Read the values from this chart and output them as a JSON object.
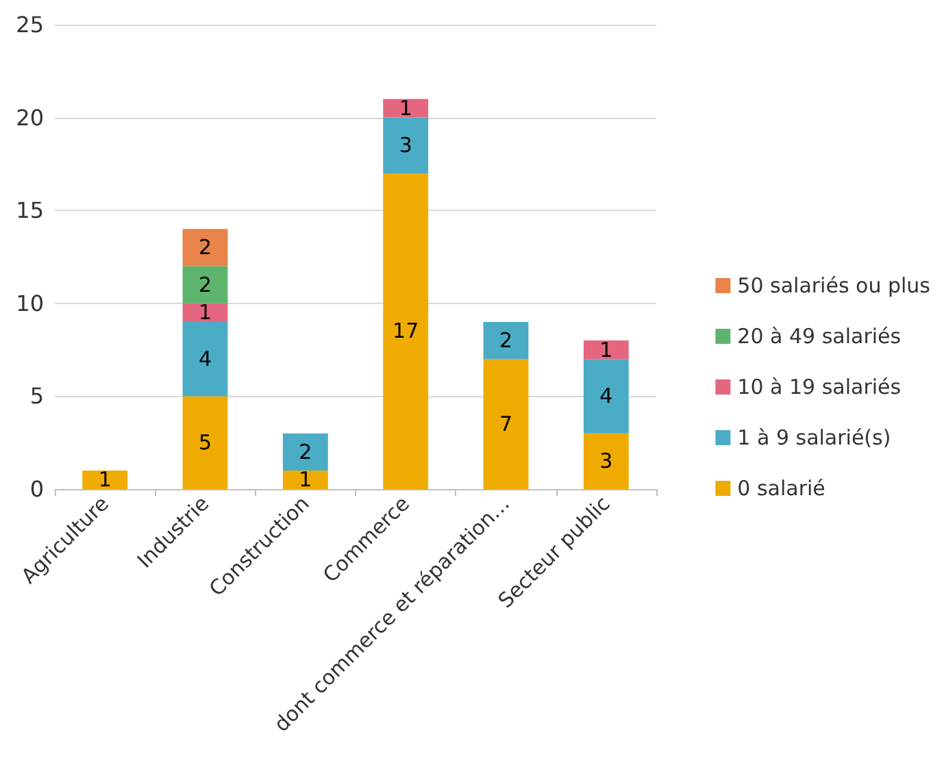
{
  "chart_data": {
    "type": "bar",
    "stacked": true,
    "categories": [
      "Agriculture",
      "Industrie",
      "Construction",
      "Commerce",
      "dont commerce et réparation…",
      "Secteur public"
    ],
    "series": [
      {
        "name": "0 salarié",
        "color": "#f0ab00",
        "values": [
          1,
          5,
          1,
          17,
          7,
          3
        ]
      },
      {
        "name": "1 à 9 salarié(s)",
        "color": "#4bacc6",
        "values": [
          null,
          4,
          2,
          3,
          2,
          4
        ]
      },
      {
        "name": "10 à 19 salariés",
        "color": "#e5667f",
        "values": [
          null,
          1,
          null,
          1,
          null,
          1
        ]
      },
      {
        "name": "20 à 49 salariés",
        "color": "#5fb46d",
        "values": [
          null,
          2,
          null,
          null,
          null,
          null
        ]
      },
      {
        "name": "50 salariés ou plus",
        "color": "#e8834a",
        "values": [
          null,
          2,
          null,
          null,
          null,
          null
        ]
      }
    ],
    "ylim": [
      0,
      25
    ],
    "yticks": [
      0,
      5,
      10,
      15,
      20,
      25
    ],
    "grid": "y",
    "legend": "right",
    "data_labels": true
  }
}
